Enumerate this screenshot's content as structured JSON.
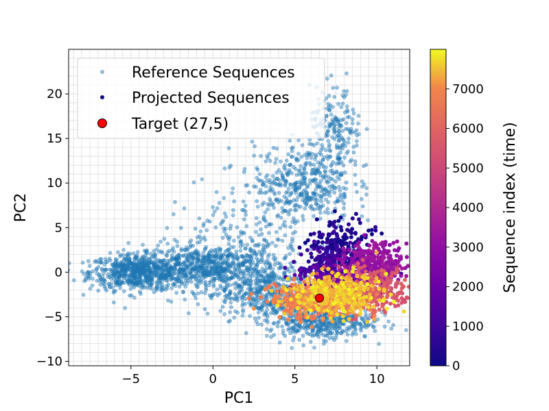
{
  "chart_data": {
    "type": "scatter",
    "xlabel": "PC1",
    "ylabel": "PC2",
    "xlim": [
      -8.8,
      12.0
    ],
    "ylim": [
      -10.5,
      25.0
    ],
    "xticks": [
      -5,
      0,
      5,
      10
    ],
    "yticks": [
      -10,
      -5,
      0,
      5,
      10,
      15,
      20
    ],
    "grid": true,
    "legend_placement": "top-left",
    "colorbar": {
      "label": "Sequence index (time)",
      "range": [
        0,
        8000
      ],
      "ticks": [
        0,
        1000,
        2000,
        3000,
        4000,
        5000,
        6000,
        7000
      ],
      "colormap": "plasma"
    },
    "series": [
      {
        "name": "Reference Sequences",
        "color": "#1f77b4",
        "clusters": [
          {
            "cx": -4.5,
            "cy": 0.0,
            "sx": 1.5,
            "sy": 1.0,
            "n": 700
          },
          {
            "cx": 0.0,
            "cy": 0.5,
            "sx": 2.0,
            "sy": 1.3,
            "n": 700
          },
          {
            "cx": 3.5,
            "cy": -2.5,
            "sx": 1.5,
            "sy": 1.4,
            "n": 400
          },
          {
            "cx": 6.5,
            "cy": -5.5,
            "sx": 1.6,
            "sy": 1.0,
            "n": 450
          },
          {
            "cx": 5.5,
            "cy": 10.0,
            "sx": 1.5,
            "sy": 2.2,
            "n": 400
          },
          {
            "cx": 7.5,
            "cy": 15.5,
            "sx": 0.8,
            "sy": 2.5,
            "n": 200
          },
          {
            "cx": 2.0,
            "cy": 4.0,
            "sx": 2.5,
            "sy": 3.0,
            "n": 200
          }
        ]
      },
      {
        "name": "Projected Sequences",
        "colormap": "plasma",
        "index_range": [
          0,
          8000
        ],
        "clusters": [
          {
            "cx": 7.8,
            "cy": 3.0,
            "sx": 0.9,
            "sy": 1.5,
            "n": 150,
            "index": 200
          },
          {
            "cx": 7.2,
            "cy": 1.0,
            "sx": 1.0,
            "sy": 1.3,
            "n": 200,
            "index": 900
          },
          {
            "cx": 8.0,
            "cy": -1.0,
            "sx": 1.2,
            "sy": 1.0,
            "n": 200,
            "index": 1800
          },
          {
            "cx": 9.8,
            "cy": 0.8,
            "sx": 1.0,
            "sy": 1.2,
            "n": 300,
            "index": 3200
          },
          {
            "cx": 9.5,
            "cy": -2.0,
            "sx": 1.3,
            "sy": 1.2,
            "n": 300,
            "index": 5600
          },
          {
            "cx": 6.5,
            "cy": -3.2,
            "sx": 1.4,
            "sy": 1.0,
            "n": 400,
            "index": 6800
          },
          {
            "cx": 7.5,
            "cy": -2.5,
            "sx": 1.3,
            "sy": 1.1,
            "n": 400,
            "index": 7600
          }
        ]
      },
      {
        "name": "Target (27,5)",
        "color": "#ff0000",
        "points": [
          {
            "x": 6.5,
            "y": -2.9
          }
        ]
      }
    ]
  }
}
